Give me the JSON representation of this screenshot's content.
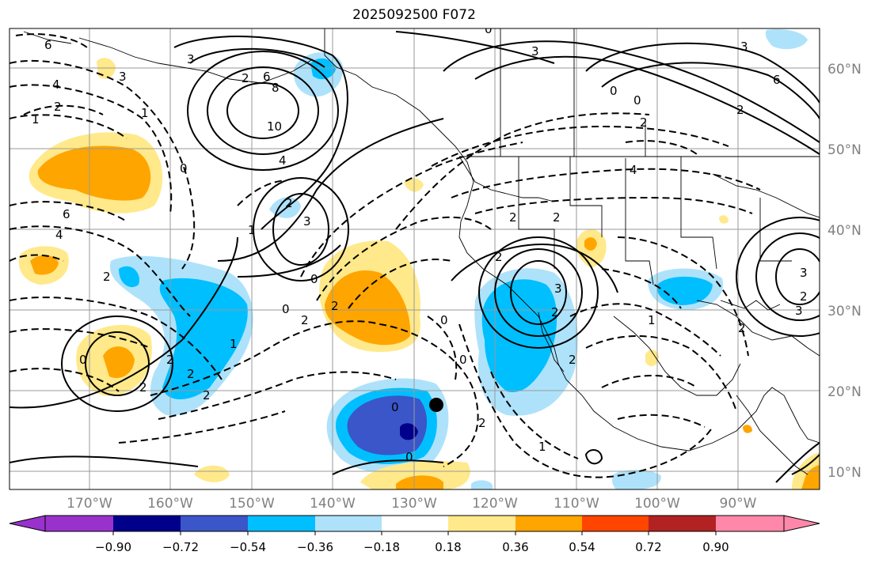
{
  "title": "2025092500 F072",
  "map": {
    "projection": "PlateCarree",
    "extent": {
      "lon_min": -180,
      "lon_max": -80,
      "lat_min": 8,
      "lat_max": 65
    },
    "gridlines": true,
    "latitude_labels": [
      "60°N",
      "50°N",
      "40°N",
      "30°N",
      "20°N",
      "10°N"
    ],
    "latitude_values": [
      60,
      50,
      40,
      30,
      20,
      10
    ],
    "longitude_labels": [
      "170°W",
      "160°W",
      "150°W",
      "140°W",
      "130°W",
      "120°W",
      "110°W",
      "100°W",
      "90°W"
    ],
    "longitude_values": [
      -170,
      -160,
      -150,
      -140,
      -130,
      -120,
      -110,
      -100,
      -90
    ],
    "label_color": "#808080",
    "marker": {
      "name": "location-dot",
      "lon": -129.7,
      "lat": 18.3,
      "color": "#000000"
    }
  },
  "contours": {
    "color": "#000000",
    "positive_style": "solid",
    "negative_style": "dashed",
    "labels": [
      "6",
      "4",
      "3",
      "2",
      "1",
      "1",
      "2",
      "6",
      "8",
      "10",
      "3",
      "0",
      "4",
      "2",
      "3",
      "1",
      "0",
      "0",
      "2",
      "2",
      "0",
      "0",
      "2",
      "2",
      "2",
      "0",
      "2",
      "1",
      "0",
      "2",
      "3",
      "2",
      "3",
      "0",
      "0",
      "2",
      "4",
      "6",
      "2",
      "1",
      "3",
      "3",
      "2",
      "0",
      "6",
      "4",
      "2",
      "3",
      "2",
      "2",
      "1",
      "0",
      "2",
      "2",
      "2"
    ]
  },
  "colorbar": {
    "orientation": "horizontal",
    "extend": "both",
    "tick_labels": [
      "−0.90",
      "−0.72",
      "−0.54",
      "−0.36",
      "−0.18",
      "0.18",
      "0.36",
      "0.54",
      "0.72",
      "0.90"
    ],
    "colors": [
      "#9932cc",
      "#00008b",
      "#3a56c9",
      "#00bfff",
      "#aee2fb",
      "#ffffff",
      "#ffe98a",
      "#ffa500",
      "#ff4500",
      "#b22222",
      "#ff88aa"
    ]
  },
  "colors": {
    "land_border": "#000000",
    "grid": "#9a9a9a",
    "title": "#000000"
  }
}
